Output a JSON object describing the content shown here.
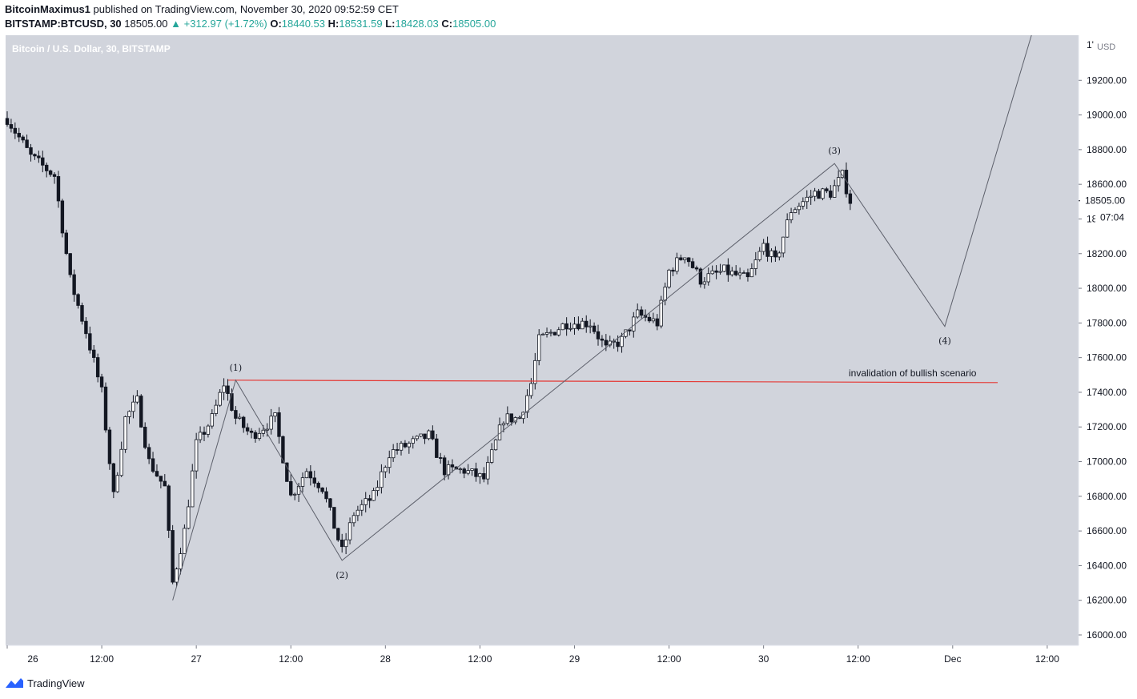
{
  "header": {
    "author": "BitcoinMaximus1",
    "published": "published on TradingView.com, November 30, 2020 09:52:59 CET",
    "symbol": "BITSTAMP:BTCUSD, 30",
    "last": "18505.00",
    "change": "▲ +312.97 (+1.72%)",
    "o_label": "O:",
    "o": "18440.53",
    "h_label": "H:",
    "h": "18531.59",
    "l_label": "L:",
    "l": "18428.03",
    "c_label": "C:",
    "c": "18505.00"
  },
  "brand": {
    "name": "TradingView",
    "icon": "tradingview-logo-icon"
  },
  "colors": {
    "plot_bg": "#d1d4dc",
    "candle": "#131722",
    "wave_line": "#5d606b",
    "invalidation": "#e53935",
    "axis_text": "#131722",
    "price_tag_bg": "#ffffff"
  },
  "chart_data": {
    "type": "candlestick",
    "title": "Bitcoin / U.S. Dollar, 30, BITSTAMP",
    "currency": "USD",
    "y_axis_top_label": "1'",
    "ylim": [
      15940,
      19460
    ],
    "y_ticks": [
      16000,
      16200,
      16400,
      16600,
      16800,
      17000,
      17200,
      17400,
      17600,
      17800,
      18000,
      18200,
      18400,
      18600,
      18800,
      19000,
      19200
    ],
    "y_tick_labels": [
      "16000.00",
      "16200.00",
      "16400.00",
      "16600.00",
      "16800.00",
      "17000.00",
      "17200.00",
      "17400.00",
      "17600.00",
      "17800.00",
      "18000.00",
      "18200.00",
      "18400.00",
      "18600.00",
      "18800.00",
      "19000.00",
      "19200.00"
    ],
    "x_ticks": [
      "26",
      "12:00",
      "27",
      "12:00",
      "28",
      "12:00",
      "29",
      "12:00",
      "30",
      "12:00",
      "Dec",
      "12:00"
    ],
    "current_price_label": "18505.00",
    "countdown_label": "07:04",
    "grid": false,
    "anchors": [
      {
        "t": 0,
        "p": 18980
      },
      {
        "t": 6,
        "p": 18760
      },
      {
        "t": 12,
        "p": 18650
      },
      {
        "t": 16,
        "p": 18050
      },
      {
        "t": 20,
        "p": 17750
      },
      {
        "t": 24,
        "p": 17400
      },
      {
        "t": 27,
        "p": 16800
      },
      {
        "t": 30,
        "p": 17250
      },
      {
        "t": 33,
        "p": 17350
      },
      {
        "t": 36,
        "p": 17000
      },
      {
        "t": 40,
        "p": 16850
      },
      {
        "t": 42,
        "p": 16300
      },
      {
        "t": 45,
        "p": 16600
      },
      {
        "t": 48,
        "p": 17100
      },
      {
        "t": 52,
        "p": 17250
      },
      {
        "t": 55,
        "p": 17450
      },
      {
        "t": 58,
        "p": 17250
      },
      {
        "t": 62,
        "p": 17150
      },
      {
        "t": 68,
        "p": 17250
      },
      {
        "t": 72,
        "p": 16800
      },
      {
        "t": 76,
        "p": 16950
      },
      {
        "t": 80,
        "p": 16850
      },
      {
        "t": 85,
        "p": 16480
      },
      {
        "t": 88,
        "p": 16700
      },
      {
        "t": 93,
        "p": 16800
      },
      {
        "t": 97,
        "p": 17050
      },
      {
        "t": 102,
        "p": 17100
      },
      {
        "t": 107,
        "p": 17150
      },
      {
        "t": 111,
        "p": 16950
      },
      {
        "t": 116,
        "p": 16950
      },
      {
        "t": 121,
        "p": 16900
      },
      {
        "t": 126,
        "p": 17250
      },
      {
        "t": 130,
        "p": 17250
      },
      {
        "t": 133,
        "p": 17450
      },
      {
        "t": 135,
        "p": 17700
      },
      {
        "t": 142,
        "p": 17800
      },
      {
        "t": 148,
        "p": 17800
      },
      {
        "t": 152,
        "p": 17650
      },
      {
        "t": 156,
        "p": 17700
      },
      {
        "t": 160,
        "p": 17850
      },
      {
        "t": 165,
        "p": 17800
      },
      {
        "t": 168,
        "p": 18100
      },
      {
        "t": 172,
        "p": 18200
      },
      {
        "t": 176,
        "p": 18050
      },
      {
        "t": 182,
        "p": 18100
      },
      {
        "t": 188,
        "p": 18050
      },
      {
        "t": 192,
        "p": 18250
      },
      {
        "t": 195,
        "p": 18150
      },
      {
        "t": 199,
        "p": 18450
      },
      {
        "t": 205,
        "p": 18550
      },
      {
        "t": 209,
        "p": 18550
      },
      {
        "t": 212,
        "p": 18650
      },
      {
        "t": 214,
        "p": 18505
      }
    ],
    "wave_points": [
      {
        "label": "",
        "t": 42,
        "p": 16200
      },
      {
        "label": "(1)",
        "t": 58,
        "p": 17470
      },
      {
        "label": "(2)",
        "t": 85,
        "p": 16430
      },
      {
        "label": "(3)",
        "t": 210,
        "p": 18720
      },
      {
        "label": "(4)",
        "t": 238,
        "p": 17780
      },
      {
        "label": "",
        "t": 260,
        "p": 19460
      }
    ],
    "invalidation_line": {
      "price": 17470,
      "label": "invalidation of bullish scenario"
    }
  }
}
